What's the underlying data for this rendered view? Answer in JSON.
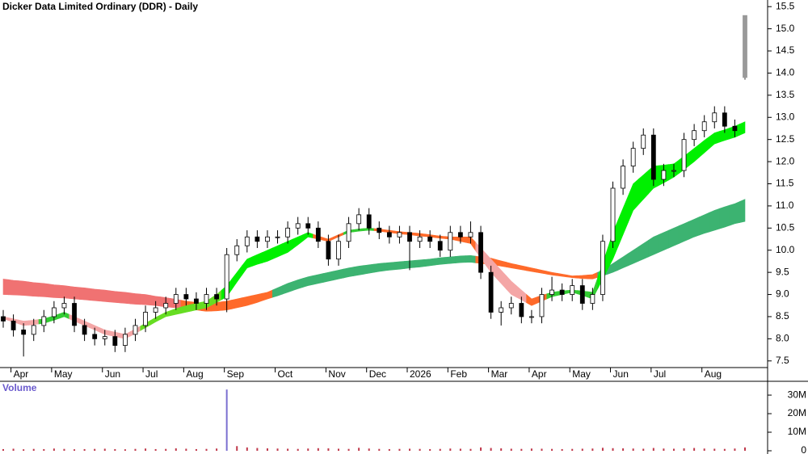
{
  "chart_data": [
    {
      "type": "candlestick",
      "title": "Dicker Data Limited Ordinary (DDR) - Daily",
      "categories": [
        null,
        "Apr",
        null,
        null,
        null,
        "May",
        null,
        null,
        null,
        null,
        "Jun",
        null,
        null,
        null,
        "Jul",
        null,
        null,
        null,
        "Aug",
        null,
        null,
        null,
        "Sep",
        null,
        null,
        null,
        null,
        "Oct",
        null,
        null,
        null,
        null,
        "Nov",
        null,
        null,
        null,
        "Dec",
        null,
        null,
        null,
        "2026",
        null,
        null,
        null,
        "Feb",
        null,
        null,
        null,
        "Mar",
        null,
        null,
        null,
        "Apr",
        null,
        null,
        null,
        "May",
        null,
        null,
        null,
        "Jun",
        null,
        null,
        null,
        "Jul",
        null,
        null,
        null,
        null,
        "Aug",
        null,
        null,
        null,
        null
      ],
      "open": [
        8.5,
        8.4,
        8.2,
        8.1,
        8.3,
        8.5,
        8.7,
        8.8,
        8.3,
        8.1,
        8.0,
        8.05,
        7.85,
        8.1,
        8.3,
        8.6,
        8.7,
        8.8,
        9.0,
        8.9,
        8.8,
        9.0,
        8.9,
        9.9,
        10.1,
        10.3,
        10.2,
        10.3,
        10.3,
        10.5,
        10.6,
        10.5,
        10.2,
        9.8,
        10.2,
        10.6,
        10.8,
        10.5,
        10.4,
        10.3,
        10.4,
        10.2,
        10.3,
        10.2,
        10.0,
        10.4,
        10.3,
        10.4,
        9.5,
        8.6,
        8.7,
        8.8,
        8.5,
        8.5,
        9.0,
        9.1,
        9.0,
        9.2,
        8.8,
        9.0,
        10.2,
        11.4,
        11.9,
        12.3,
        12.6,
        11.6,
        11.8,
        11.8,
        12.5,
        12.7,
        12.9,
        13.1,
        12.8,
        15.3
      ],
      "high": [
        8.65,
        8.55,
        8.35,
        8.45,
        8.65,
        8.85,
        8.95,
        8.95,
        8.45,
        8.25,
        8.2,
        8.2,
        8.25,
        8.45,
        8.75,
        8.85,
        8.95,
        9.15,
        9.15,
        9.05,
        9.15,
        9.15,
        10.05,
        10.25,
        10.45,
        10.45,
        10.45,
        10.45,
        10.65,
        10.75,
        10.75,
        10.65,
        10.35,
        10.35,
        10.75,
        10.95,
        10.95,
        10.65,
        10.55,
        10.55,
        10.55,
        10.45,
        10.45,
        10.35,
        10.55,
        10.55,
        10.65,
        10.55,
        9.65,
        8.85,
        8.95,
        8.95,
        8.65,
        9.15,
        9.4,
        9.25,
        9.35,
        9.35,
        9.15,
        10.35,
        11.55,
        12.05,
        12.45,
        12.75,
        12.75,
        11.95,
        11.95,
        12.65,
        12.85,
        13.05,
        13.25,
        13.25,
        12.95,
        15.3
      ],
      "low": [
        8.25,
        8.05,
        7.6,
        7.95,
        8.15,
        8.35,
        8.55,
        8.15,
        7.95,
        7.85,
        7.85,
        7.7,
        7.7,
        7.95,
        8.15,
        8.45,
        8.55,
        8.65,
        8.75,
        8.65,
        8.65,
        8.75,
        8.6,
        9.75,
        9.95,
        10.05,
        10.05,
        10.15,
        10.15,
        10.35,
        10.35,
        10.05,
        9.65,
        9.65,
        10.05,
        10.45,
        10.35,
        10.25,
        10.15,
        10.15,
        9.55,
        10.05,
        10.05,
        9.85,
        9.85,
        10.15,
        10.15,
        9.35,
        8.45,
        8.3,
        8.55,
        8.35,
        8.35,
        8.35,
        8.85,
        8.85,
        8.85,
        8.65,
        8.65,
        8.85,
        10.05,
        11.25,
        11.75,
        12.15,
        11.45,
        11.45,
        11.65,
        11.65,
        12.35,
        12.55,
        12.75,
        12.65,
        12.55,
        13.85
      ],
      "close": [
        8.4,
        8.2,
        8.1,
        8.3,
        8.5,
        8.7,
        8.8,
        8.3,
        8.1,
        8.0,
        8.05,
        7.85,
        8.1,
        8.3,
        8.6,
        8.7,
        8.8,
        9.0,
        8.9,
        8.8,
        9.0,
        8.9,
        9.9,
        10.1,
        10.3,
        10.2,
        10.3,
        10.3,
        10.5,
        10.6,
        10.5,
        10.2,
        9.8,
        10.2,
        10.6,
        10.8,
        10.5,
        10.4,
        10.3,
        10.4,
        10.2,
        10.3,
        10.2,
        10.0,
        10.4,
        10.3,
        10.4,
        9.5,
        8.6,
        8.7,
        8.8,
        8.5,
        8.5,
        9.0,
        9.1,
        9.0,
        9.2,
        8.8,
        9.0,
        10.2,
        11.4,
        11.9,
        12.3,
        12.6,
        11.6,
        11.8,
        11.8,
        12.5,
        12.7,
        12.9,
        13.1,
        12.8,
        12.7,
        13.9
      ],
      "up_color": "#ffffff",
      "down_color": "#000000",
      "last_color": "#999999",
      "ribbons": [
        {
          "upper": [
            9.35,
            9.32,
            9.3,
            9.27,
            9.25,
            9.22,
            9.2,
            9.17,
            9.15,
            9.12,
            9.1,
            9.07,
            9.05,
            9.02,
            9.0,
            8.96,
            8.93,
            8.89,
            8.85,
            8.82,
            8.8,
            8.82,
            8.85,
            8.9,
            8.95,
            9.0,
            9.05,
            9.15,
            9.25,
            9.33,
            9.4,
            9.45,
            9.5,
            9.55,
            9.6,
            9.64,
            9.67,
            9.7,
            9.72,
            9.74,
            9.76,
            9.78,
            9.8,
            9.83,
            9.85,
            9.87,
            9.88,
            9.85,
            9.82,
            9.76,
            9.7,
            9.65,
            9.6,
            9.55,
            9.5,
            9.46,
            9.42,
            9.43,
            9.45,
            9.55,
            9.7,
            9.85,
            10.0,
            10.15,
            10.3,
            10.4,
            10.5,
            10.6,
            10.7,
            10.8,
            10.9,
            10.98,
            11.05,
            11.15
          ],
          "lower": [
            9.0,
            8.99,
            8.98,
            8.96,
            8.95,
            8.93,
            8.92,
            8.9,
            8.88,
            8.86,
            8.84,
            8.82,
            8.8,
            8.78,
            8.77,
            8.75,
            8.72,
            8.7,
            8.68,
            8.65,
            8.62,
            8.63,
            8.65,
            8.7,
            8.75,
            8.82,
            8.9,
            8.97,
            9.05,
            9.13,
            9.2,
            9.25,
            9.3,
            9.35,
            9.4,
            9.44,
            9.48,
            9.52,
            9.55,
            9.57,
            9.6,
            9.62,
            9.65,
            9.68,
            9.7,
            9.72,
            9.73,
            9.7,
            9.68,
            9.64,
            9.6,
            9.56,
            9.52,
            9.48,
            9.44,
            9.41,
            9.38,
            9.36,
            9.35,
            9.42,
            9.5,
            9.6,
            9.7,
            9.8,
            9.9,
            10.0,
            10.1,
            10.2,
            10.3,
            10.38,
            10.45,
            10.52,
            10.6,
            10.65
          ],
          "colors": [
            "#f07272",
            "#f07272",
            "#f07272",
            "#f07272",
            "#f07272",
            "#f07272",
            "#f07272",
            "#f07272",
            "#f07272",
            "#f07272",
            "#f07272",
            "#f07272",
            "#f07272",
            "#f07272",
            "#f07272",
            "#f07272",
            "#f07272",
            "#f07272",
            "#ff6a2a",
            "#ff6a2a",
            "#ff6a2a",
            "#ff6a2a",
            "#ff6a2a",
            "#ff6a2a",
            "#ff6a2a",
            "#ff6a2a",
            "#ff6a2a",
            "#3cb371",
            "#3cb371",
            "#3cb371",
            "#3cb371",
            "#3cb371",
            "#3cb371",
            "#3cb371",
            "#3cb371",
            "#3cb371",
            "#3cb371",
            "#3cb371",
            "#3cb371",
            "#3cb371",
            "#3cb371",
            "#3cb371",
            "#3cb371",
            "#3cb371",
            "#3cb371",
            "#3cb371",
            "#3cb371",
            "#ff6a2a",
            "#ff6a2a",
            "#ff6a2a",
            "#ff6a2a",
            "#ff6a2a",
            "#ff6a2a",
            "#ff6a2a",
            "#ff6a2a",
            "#ff6a2a",
            "#ff6a2a",
            "#ff6a2a",
            "#ff6a2a",
            "#3cb371",
            "#3cb371",
            "#3cb371",
            "#3cb371",
            "#3cb371",
            "#3cb371",
            "#3cb371",
            "#3cb371",
            "#3cb371",
            "#3cb371",
            "#3cb371",
            "#3cb371",
            "#3cb371",
            "#3cb371",
            "#3cb371"
          ]
        },
        {
          "upper": [
            8.5,
            8.45,
            8.4,
            8.42,
            8.45,
            8.52,
            8.6,
            8.5,
            8.4,
            8.3,
            8.2,
            8.15,
            8.1,
            8.22,
            8.35,
            8.48,
            8.6,
            8.68,
            8.75,
            8.8,
            8.85,
            9.0,
            9.2,
            9.5,
            9.8,
            9.9,
            10.0,
            10.1,
            10.2,
            10.3,
            10.4,
            10.32,
            10.25,
            10.35,
            10.45,
            10.48,
            10.5,
            10.48,
            10.45,
            10.42,
            10.4,
            10.38,
            10.35,
            10.32,
            10.3,
            10.3,
            10.3,
            10.05,
            9.8,
            9.55,
            9.3,
            9.1,
            8.9,
            8.98,
            9.05,
            9.08,
            9.1,
            9.08,
            9.05,
            9.7,
            10.4,
            10.95,
            11.5,
            11.7,
            11.9,
            11.92,
            11.95,
            12.12,
            12.3,
            12.48,
            12.65,
            12.72,
            12.8,
            12.9
          ],
          "lower": [
            8.45,
            8.38,
            8.3,
            8.32,
            8.35,
            8.42,
            8.5,
            8.4,
            8.3,
            8.2,
            8.1,
            8.05,
            8.0,
            8.12,
            8.25,
            8.38,
            8.5,
            8.55,
            8.6,
            8.65,
            8.7,
            8.82,
            8.95,
            9.28,
            9.6,
            9.68,
            9.75,
            9.85,
            9.95,
            10.12,
            10.3,
            10.25,
            10.2,
            10.3,
            10.4,
            10.43,
            10.45,
            10.43,
            10.4,
            10.37,
            10.35,
            10.32,
            10.3,
            10.27,
            10.25,
            10.2,
            10.15,
            9.82,
            9.5,
            9.25,
            9.0,
            8.88,
            8.75,
            8.85,
            8.95,
            9.0,
            9.05,
            8.98,
            8.9,
            9.35,
            9.8,
            10.35,
            10.9,
            11.15,
            11.4,
            11.52,
            11.65,
            11.82,
            12.0,
            12.2,
            12.4,
            12.48,
            12.55,
            12.65
          ],
          "colors": [
            "#f4a6a6",
            "#f4a6a6",
            "#f4a6a6",
            "#f4a6a6",
            "#33cc33",
            "#33cc33",
            "#33cc33",
            "#f4a6a6",
            "#f4a6a6",
            "#f4a6a6",
            "#f4a6a6",
            "#f4a6a6",
            "#f4a6a6",
            "#f4a6a6",
            "#66dd22",
            "#66dd22",
            "#66dd22",
            "#66dd22",
            "#66dd22",
            "#66dd22",
            "#66dd22",
            "#66dd22",
            "#00f000",
            "#00f000",
            "#00f000",
            "#00f000",
            "#00f000",
            "#00f000",
            "#00f000",
            "#00f000",
            "#00f000",
            "#ff6a2a",
            "#ff6a2a",
            "#ff6a2a",
            "#33cc33",
            "#33cc33",
            "#33cc33",
            "#ff6a2a",
            "#ff6a2a",
            "#ff6a2a",
            "#ff6a2a",
            "#ff6a2a",
            "#ff6a2a",
            "#ff6a2a",
            "#ff6a2a",
            "#ff6a2a",
            "#ff6a2a",
            "#f4a6a6",
            "#f4a6a6",
            "#f4a6a6",
            "#f4a6a6",
            "#f4a6a6",
            "#ff6a2a",
            "#ff6a2a",
            "#33cc33",
            "#33cc33",
            "#33cc33",
            "#33cc33",
            "#33cc33",
            "#00f000",
            "#00f000",
            "#00f000",
            "#00f000",
            "#00f000",
            "#00f000",
            "#00f000",
            "#00f000",
            "#00f000",
            "#00f000",
            "#00f000",
            "#00f000",
            "#00f000",
            "#00f000",
            "#00f000"
          ]
        }
      ],
      "ylim": [
        7.35,
        15.65
      ],
      "yticks": [
        7.5,
        {
          "value": 8,
          "label": "8.0"
        },
        8.5,
        {
          "value": 9,
          "label": "9.0"
        },
        9.5,
        {
          "value": 10,
          "label": "10.0"
        },
        10.5,
        {
          "value": 11,
          "label": "11.0"
        },
        11.5,
        {
          "value": 12,
          "label": "12.0"
        },
        12.5,
        {
          "value": 13,
          "label": "13.0"
        },
        13.5,
        {
          "value": 14,
          "label": "14.0"
        },
        14.5,
        {
          "value": 15,
          "label": "15.0"
        },
        15.5
      ]
    },
    {
      "type": "bar",
      "title": "Volume",
      "color": "#c0394b",
      "spike_color": "#7b6fd0",
      "values": [
        900000,
        1100000,
        800000,
        1000000,
        900000,
        1200000,
        1000000,
        800000,
        900000,
        1000000,
        1100000,
        900000,
        800000,
        1000000,
        1200000,
        900000,
        1000000,
        1300000,
        1100000,
        900000,
        1000000,
        1200000,
        33000000,
        2500000,
        1800000,
        1500000,
        1300000,
        1200000,
        1100000,
        1000000,
        1200000,
        1400000,
        1300000,
        1100000,
        1000000,
        1600000,
        1200000,
        1000000,
        900000,
        1000000,
        1100000,
        1000000,
        900000,
        1000000,
        1200000,
        1100000,
        1000000,
        1800000,
        1500000,
        1300000,
        1100000,
        1000000,
        1200000,
        1100000,
        1000000,
        900000,
        1000000,
        1100000,
        1200000,
        1600000,
        1400000,
        1300000,
        1200000,
        1100000,
        1500000,
        1200000,
        1100000,
        1300000,
        1500000,
        1200000,
        1100000,
        1000000,
        1200000,
        1800000
      ],
      "ylim": [
        0,
        37000000
      ],
      "yticks": [
        0,
        {
          "value": 10000000,
          "label": "10M"
        },
        {
          "value": 20000000,
          "label": "20M"
        },
        {
          "value": 30000000,
          "label": "30M"
        }
      ]
    }
  ]
}
